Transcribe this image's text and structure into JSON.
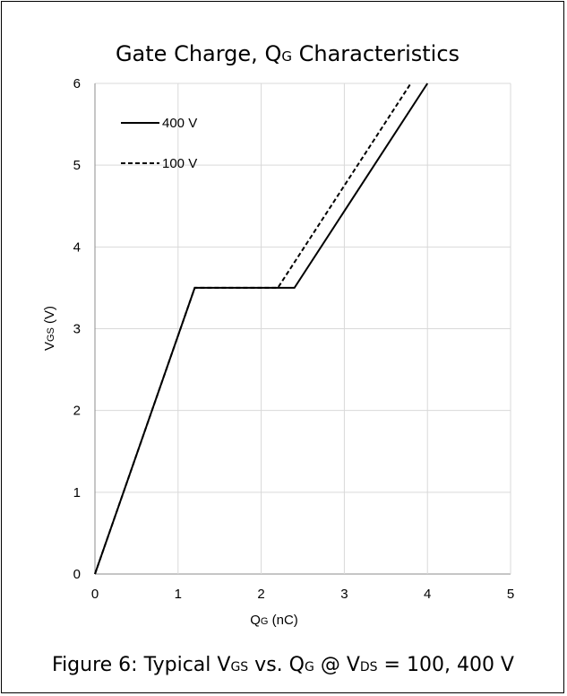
{
  "chart_data": {
    "type": "line",
    "title": {
      "main": "Gate Charge, Q",
      "sub": "G",
      "rest": " Characteristics"
    },
    "xlabel": {
      "main": "Q",
      "sub": "G",
      "rest": " (nC)"
    },
    "ylabel": {
      "main": "V",
      "sub": "GS",
      "rest": " (V)"
    },
    "xlim": [
      0,
      5
    ],
    "ylim": [
      0,
      6
    ],
    "xticks": [
      "0",
      "1",
      "2",
      "3",
      "4",
      "5"
    ],
    "yticks": [
      "0",
      "1",
      "2",
      "3",
      "4",
      "5",
      "6"
    ],
    "grid": true,
    "legend_position": "top-left",
    "series": [
      {
        "name": "400 V",
        "style": "solid",
        "color": "#000000",
        "x": [
          0,
          1.2,
          2.4,
          4.0
        ],
        "y": [
          0,
          3.5,
          3.5,
          6.0
        ]
      },
      {
        "name": "100 V",
        "style": "dashed",
        "color": "#000000",
        "x": [
          0,
          1.2,
          2.2,
          3.8
        ],
        "y": [
          0,
          3.5,
          3.5,
          6.0
        ]
      }
    ]
  },
  "caption": {
    "p1": "Figure 6: Typical V",
    "s1": "GS",
    "p2": " vs. Q",
    "s2": "G",
    "p3": " @ V",
    "s3": "DS",
    "p4": " = 100, 400 V"
  }
}
